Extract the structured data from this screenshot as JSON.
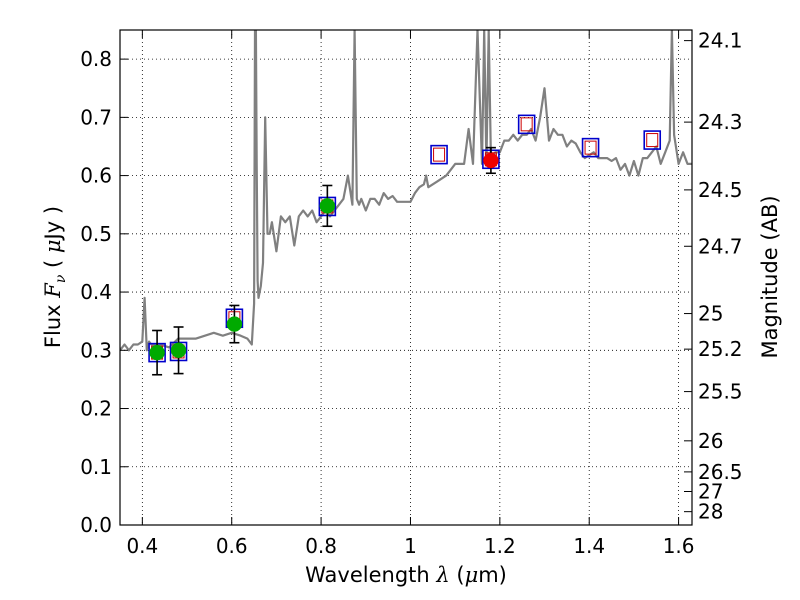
{
  "chart_data": {
    "type": "line",
    "title": "",
    "xlabel": {
      "prefix": "Wavelength  ",
      "symbol": "λ",
      "unit_open": " (",
      "unit_mu": "μ",
      "unit_rest": "m)"
    },
    "ylabel": {
      "prefix": "Flux  ",
      "symbol": "F",
      "subscript": "ν",
      "unit_open": "  ( ",
      "unit_mu": "μ",
      "unit_rest": "Jy )"
    },
    "y2label": "Magnitude (AB)",
    "xlim": [
      0.35,
      1.63
    ],
    "ylim": [
      0.0,
      0.85
    ],
    "xticks": [
      0.4,
      0.6,
      0.8,
      1.0,
      1.2,
      1.4,
      1.6
    ],
    "xtick_labels": [
      "0.4",
      "0.6",
      "0.8",
      "1",
      "1.2",
      "1.4",
      "1.6"
    ],
    "yticks": [
      0.0,
      0.1,
      0.2,
      0.3,
      0.4,
      0.5,
      0.6,
      0.7,
      0.8
    ],
    "ytick_labels": [
      "0.0",
      "0.1",
      "0.2",
      "0.3",
      "0.4",
      "0.5",
      "0.6",
      "0.7",
      "0.8"
    ],
    "y2_ticks": [
      {
        "label": "24.1",
        "value": 24.1
      },
      {
        "label": "24.3",
        "value": 24.3
      },
      {
        "label": "24.5",
        "value": 24.5
      },
      {
        "label": "24.7",
        "value": 24.7
      },
      {
        "label": "25",
        "value": 25.0
      },
      {
        "label": "25.2",
        "value": 25.2
      },
      {
        "label": "25.5",
        "value": 25.5
      },
      {
        "label": "26",
        "value": 26.0
      },
      {
        "label": "26.5",
        "value": 26.5
      },
      {
        "label": "27",
        "value": 27.0
      },
      {
        "label": "28",
        "value": 28.0
      }
    ],
    "grid": true,
    "colors": {
      "spectrum": "#808080",
      "model_box_outer": "#0000cc",
      "model_box_inner": "#cc0000",
      "detection": "#00aa00",
      "highlight": "#ee0000",
      "errorbar": "#000000",
      "grid": "#000000"
    },
    "spectrum": {
      "name": "",
      "x": [
        0.35,
        0.36,
        0.37,
        0.38,
        0.39,
        0.4,
        0.405,
        0.41,
        0.415,
        0.42,
        0.44,
        0.46,
        0.48,
        0.5,
        0.52,
        0.54,
        0.56,
        0.58,
        0.6,
        0.62,
        0.635,
        0.645,
        0.65,
        0.652,
        0.654,
        0.656,
        0.658,
        0.66,
        0.665,
        0.67,
        0.675,
        0.68,
        0.685,
        0.69,
        0.7,
        0.71,
        0.72,
        0.73,
        0.74,
        0.75,
        0.76,
        0.77,
        0.78,
        0.79,
        0.8,
        0.81,
        0.82,
        0.83,
        0.84,
        0.85,
        0.86,
        0.87,
        0.875,
        0.88,
        0.885,
        0.89,
        0.9,
        0.91,
        0.92,
        0.93,
        0.94,
        0.95,
        0.96,
        0.97,
        0.98,
        0.99,
        1.0,
        1.01,
        1.02,
        1.03,
        1.035,
        1.04,
        1.06,
        1.08,
        1.09,
        1.1,
        1.11,
        1.12,
        1.13,
        1.14,
        1.15,
        1.16,
        1.165,
        1.17,
        1.175,
        1.18,
        1.19,
        1.2,
        1.21,
        1.22,
        1.23,
        1.24,
        1.25,
        1.26,
        1.27,
        1.28,
        1.29,
        1.3,
        1.31,
        1.32,
        1.33,
        1.34,
        1.35,
        1.36,
        1.37,
        1.38,
        1.39,
        1.4,
        1.41,
        1.42,
        1.43,
        1.44,
        1.45,
        1.46,
        1.47,
        1.48,
        1.49,
        1.5,
        1.51,
        1.52,
        1.53,
        1.54,
        1.55,
        1.56,
        1.57,
        1.58,
        1.585,
        1.59,
        1.6,
        1.61,
        1.62,
        1.63
      ],
      "y": [
        0.3,
        0.31,
        0.3,
        0.31,
        0.31,
        0.315,
        0.39,
        0.3,
        0.315,
        0.31,
        0.31,
        0.305,
        0.32,
        0.32,
        0.32,
        0.325,
        0.33,
        0.325,
        0.33,
        0.325,
        0.32,
        0.31,
        0.38,
        0.85,
        0.85,
        0.62,
        0.42,
        0.39,
        0.41,
        0.45,
        0.7,
        0.5,
        0.5,
        0.52,
        0.47,
        0.53,
        0.52,
        0.53,
        0.48,
        0.53,
        0.54,
        0.53,
        0.54,
        0.52,
        0.53,
        0.54,
        0.53,
        0.54,
        0.55,
        0.56,
        0.6,
        0.55,
        0.85,
        0.56,
        0.55,
        0.56,
        0.54,
        0.56,
        0.56,
        0.55,
        0.57,
        0.56,
        0.565,
        0.555,
        0.555,
        0.555,
        0.555,
        0.57,
        0.58,
        0.585,
        0.6,
        0.58,
        0.59,
        0.6,
        0.61,
        0.62,
        0.62,
        0.62,
        0.68,
        0.62,
        0.85,
        0.62,
        0.85,
        0.62,
        0.85,
        0.63,
        0.64,
        0.64,
        0.66,
        0.66,
        0.67,
        0.66,
        0.67,
        0.67,
        0.68,
        0.66,
        0.7,
        0.75,
        0.66,
        0.68,
        0.67,
        0.67,
        0.65,
        0.66,
        0.655,
        0.64,
        0.63,
        0.635,
        0.64,
        0.63,
        0.63,
        0.63,
        0.625,
        0.63,
        0.61,
        0.62,
        0.6,
        0.625,
        0.6,
        0.63,
        0.63,
        0.64,
        0.65,
        0.62,
        0.64,
        0.66,
        0.85,
        0.67,
        0.62,
        0.64,
        0.62,
        0.62
      ]
    },
    "photometry": [
      {
        "x": 0.433,
        "model": 0.296,
        "obs": 0.296,
        "err": 0.038,
        "kind": "detection"
      },
      {
        "x": 0.481,
        "model": 0.298,
        "obs": 0.3,
        "err": 0.04,
        "kind": "detection"
      },
      {
        "x": 0.606,
        "model": 0.355,
        "obs": 0.345,
        "err": 0.032,
        "kind": "detection"
      },
      {
        "x": 0.814,
        "model": 0.547,
        "obs": 0.548,
        "err": 0.035,
        "kind": "detection"
      },
      {
        "x": 1.064,
        "model": 0.636,
        "obs": null,
        "err": null,
        "kind": "model_only"
      },
      {
        "x": 1.18,
        "model": 0.628,
        "obs": 0.626,
        "err": 0.022,
        "kind": "highlight"
      },
      {
        "x": 1.26,
        "model": 0.688,
        "obs": null,
        "err": null,
        "kind": "model_only"
      },
      {
        "x": 1.403,
        "model": 0.648,
        "obs": null,
        "err": null,
        "kind": "model_only"
      },
      {
        "x": 1.541,
        "model": 0.661,
        "obs": null,
        "err": null,
        "kind": "model_only"
      }
    ]
  }
}
